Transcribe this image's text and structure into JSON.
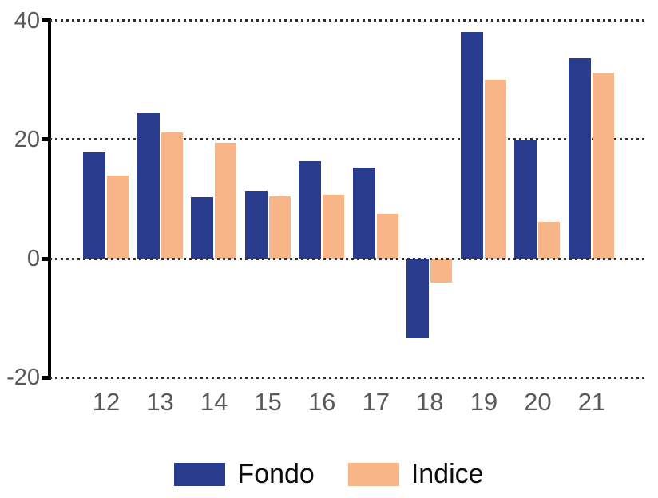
{
  "chart_data": {
    "type": "bar",
    "categories": [
      "12",
      "13",
      "14",
      "15",
      "16",
      "17",
      "18",
      "19",
      "20",
      "21"
    ],
    "series": [
      {
        "name": "Fondo",
        "color": "#283B8D",
        "values": [
          17.8,
          24.6,
          10.3,
          11.4,
          16.4,
          15.3,
          -13.4,
          38.1,
          19.8,
          33.6
        ]
      },
      {
        "name": "Indice",
        "color": "#F8B688",
        "values": [
          14.0,
          21.2,
          19.5,
          10.4,
          10.7,
          7.5,
          -4.0,
          30.0,
          6.2,
          31.2
        ]
      }
    ],
    "title": "",
    "xlabel": "",
    "ylabel": "",
    "ylim": [
      -20,
      40
    ],
    "yticks": [
      40,
      20,
      0,
      -20
    ],
    "grid": "horizontal dotted",
    "legend_position": "bottom",
    "axis_label_color": "#595959",
    "axis_line_color": "#000000",
    "gridline_color": "#2e2e2e",
    "background_color": "#ffffff"
  },
  "legend": {
    "items": [
      {
        "label": "Fondo",
        "color": "#283B8D"
      },
      {
        "label": "Indice",
        "color": "#F8B688"
      }
    ]
  }
}
